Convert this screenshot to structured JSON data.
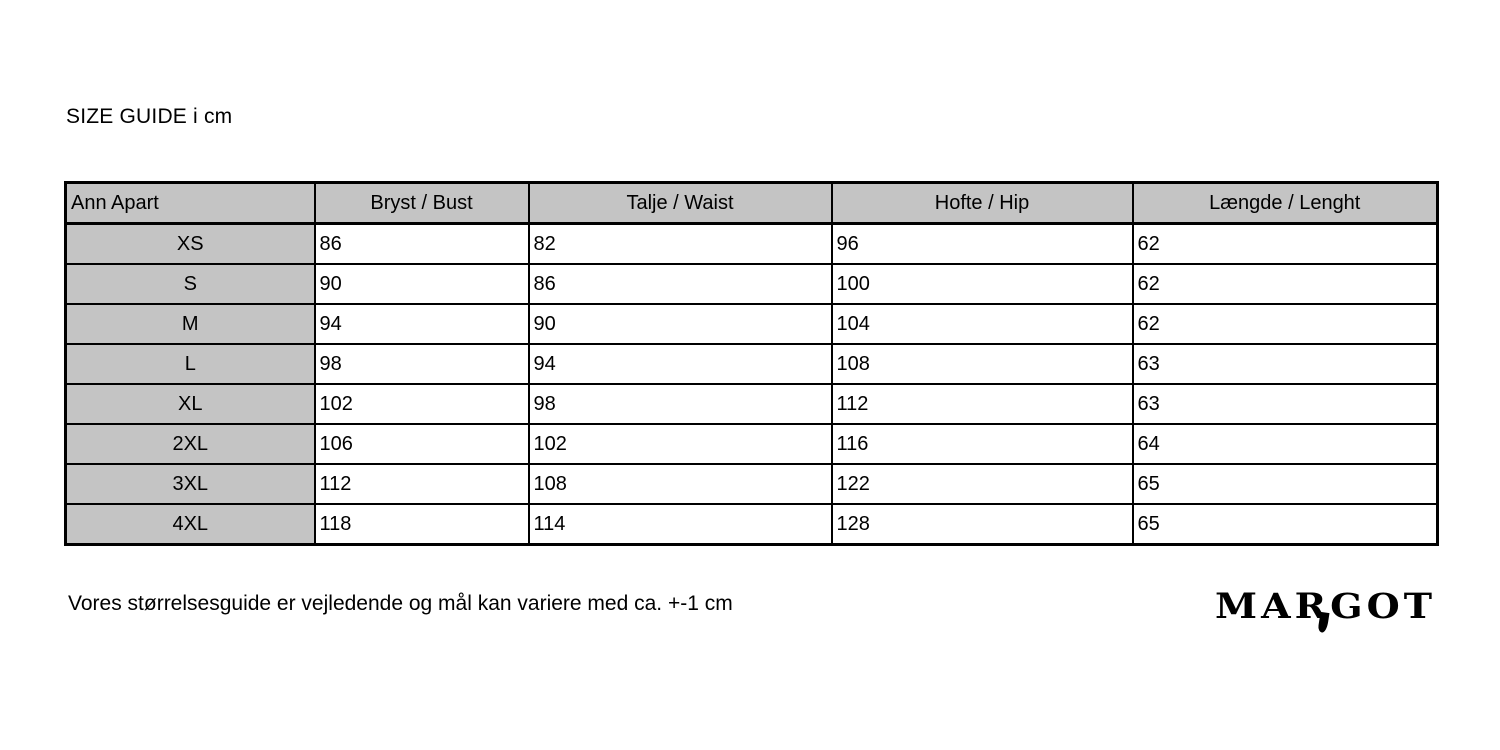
{
  "title": "SIZE GUIDE i cm",
  "table": {
    "brand_header": "Ann Apart",
    "columns": [
      "Bryst / Bust",
      "Talje / Waist",
      "Hofte / Hip",
      "Længde / Lenght"
    ],
    "rows": [
      {
        "size": "XS",
        "values": [
          "86",
          "82",
          "96",
          "62"
        ]
      },
      {
        "size": "S",
        "values": [
          "90",
          "86",
          "100",
          "62"
        ]
      },
      {
        "size": "M",
        "values": [
          "94",
          "90",
          "104",
          "62"
        ]
      },
      {
        "size": "L",
        "values": [
          "98",
          "94",
          "108",
          "63"
        ]
      },
      {
        "size": "XL",
        "values": [
          "102",
          "98",
          "112",
          "63"
        ]
      },
      {
        "size": "2XL",
        "values": [
          "106",
          "102",
          "116",
          "64"
        ]
      },
      {
        "size": "3XL",
        "values": [
          "112",
          "108",
          "122",
          "65"
        ]
      },
      {
        "size": "4XL",
        "values": [
          "118",
          "114",
          "128",
          "65"
        ]
      }
    ]
  },
  "footer": {
    "note": "Vores størrelsesguide er vejledende og mål kan variere med ca. +-1 cm"
  },
  "logo": {
    "part1": "MA",
    "part_r": "R",
    "part2": "GOT"
  },
  "colors": {
    "header_bg": "#c4c4c4",
    "border": "#000000",
    "background": "#ffffff"
  }
}
